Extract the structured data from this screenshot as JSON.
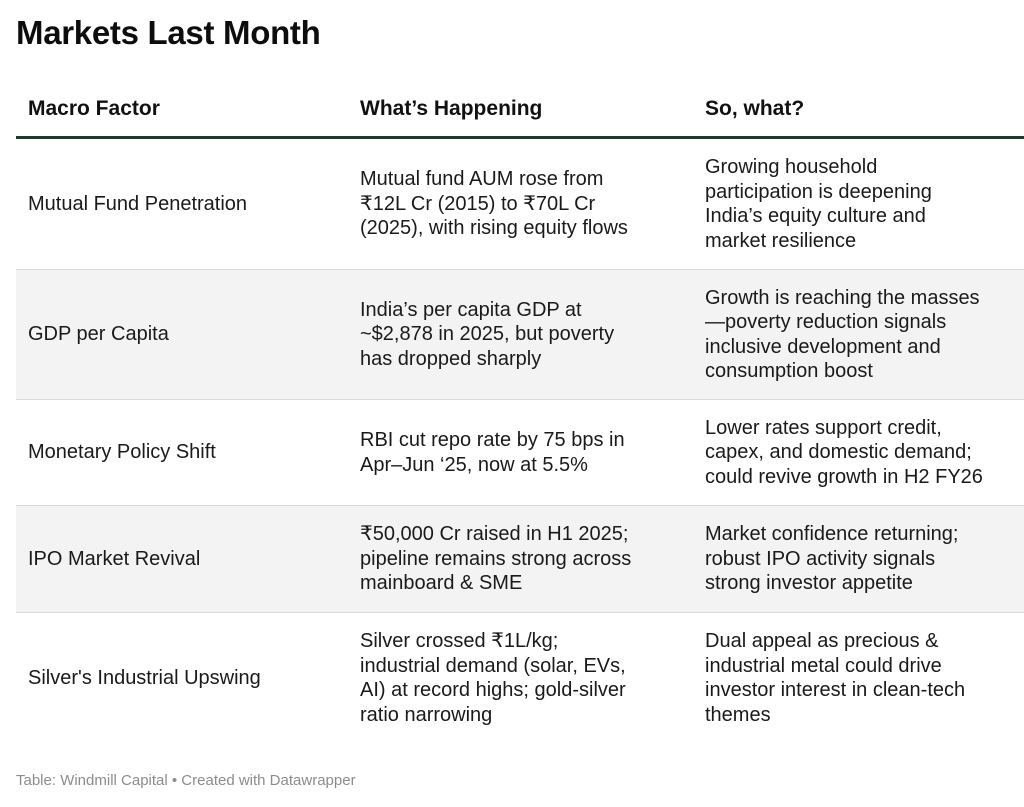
{
  "title": "Markets Last Month",
  "table": {
    "headers": [
      "Macro Factor",
      "What’s Happening",
      "So, what?"
    ],
    "rows": [
      {
        "factor": "Mutual Fund Penetration",
        "happening": "Mutual fund AUM rose from\n₹12L Cr (2015) to ₹70L Cr\n(2025), with rising equity flows",
        "so_what": "Growing household\nparticipation is deepening\nIndia’s equity culture and\nmarket resilience"
      },
      {
        "factor": "GDP per Capita",
        "happening": "India’s per capita GDP at\n~$2,878 in 2025, but poverty\nhas dropped sharply",
        "so_what": "Growth is reaching the masses\n—poverty reduction signals\ninclusive development and\nconsumption boost"
      },
      {
        "factor": "Monetary Policy Shift",
        "happening": "RBI cut repo rate by 75 bps in\nApr–Jun ‘25, now at 5.5%",
        "so_what": "Lower rates support credit,\ncapex, and domestic demand;\ncould revive growth in H2 FY26"
      },
      {
        "factor": "IPO Market Revival",
        "happening": "₹50,000 Cr raised in H1 2025;\npipeline remains strong across\nmainboard & SME",
        "so_what": "Market confidence returning;\nrobust IPO activity signals\nstrong investor appetite"
      },
      {
        "factor": "Silver's Industrial Upswing",
        "happening": "Silver crossed ₹1L/kg;\nindustrial demand (solar, EVs,\nAI) at record highs; gold-silver\nratio narrowing",
        "so_what": "Dual appeal as precious &\nindustrial metal could drive\ninvestor interest in clean-tech\nthemes"
      }
    ]
  },
  "footer": "Table: Windmill Capital • Created with Datawrapper"
}
